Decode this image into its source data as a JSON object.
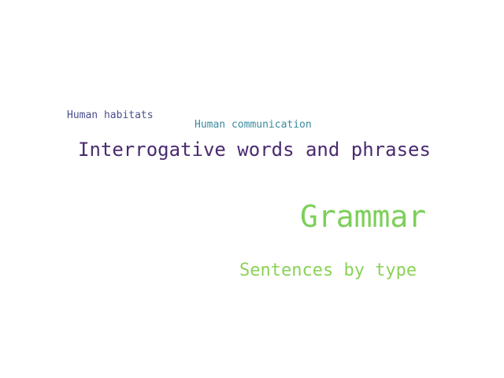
{
  "words": [
    {
      "text": "Human habitats",
      "color": "#4a4f8c"
    },
    {
      "text": "Human communication",
      "color": "#3a8a9e"
    },
    {
      "text": "Interrogative words and phrases",
      "color": "#4b2a70"
    },
    {
      "text": "Grammar",
      "color": "#7ccf5a"
    },
    {
      "text": "Sentences by type",
      "color": "#8bd256"
    }
  ]
}
